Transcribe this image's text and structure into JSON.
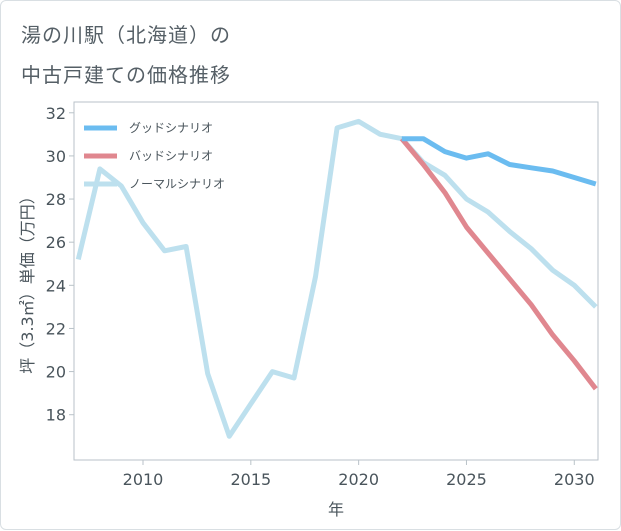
{
  "title_line1": "湯の川駅（北海道）の",
  "title_line2": "中古戸建ての価格推移",
  "chart_data": {
    "type": "line",
    "xlabel": "年",
    "ylabel": "坪（3.3㎡）単価（万円）",
    "xlim": [
      2006.8,
      2031.1
    ],
    "ylim": [
      15.9,
      32.5
    ],
    "xticks": [
      2010,
      2015,
      2020,
      2025,
      2030
    ],
    "yticks": [
      18,
      20,
      22,
      24,
      26,
      28,
      30,
      32
    ],
    "grid": false,
    "legend_position": "top-left",
    "series": [
      {
        "name": "グッドシナリオ",
        "color": "#6bbcf0",
        "x": [
          2022,
          2023,
          2024,
          2025,
          2026,
          2027,
          2028,
          2029,
          2030,
          2031
        ],
        "y": [
          30.8,
          30.8,
          30.2,
          29.9,
          30.1,
          29.6,
          29.45,
          29.3,
          29.0,
          28.7
        ]
      },
      {
        "name": "バッドシナリオ",
        "color": "#e0878f",
        "x": [
          2022,
          2023,
          2024,
          2025,
          2026,
          2027,
          2028,
          2029,
          2030,
          2031
        ],
        "y": [
          30.8,
          29.6,
          28.3,
          26.7,
          25.5,
          24.3,
          23.1,
          21.7,
          20.5,
          19.2
        ]
      },
      {
        "name": "ノーマルシナリオ",
        "color": "#bde0ee",
        "x": [
          2007,
          2008,
          2009,
          2010,
          2011,
          2012,
          2013,
          2014,
          2015,
          2016,
          2017,
          2018,
          2019,
          2020,
          2021,
          2022,
          2023,
          2024,
          2025,
          2026,
          2027,
          2028,
          2029,
          2030,
          2031
        ],
        "y": [
          25.2,
          29.4,
          28.6,
          26.9,
          25.6,
          25.8,
          19.9,
          17.0,
          18.5,
          20.0,
          19.7,
          24.4,
          31.3,
          31.6,
          31.0,
          30.8,
          29.7,
          29.1,
          28.0,
          27.4,
          26.5,
          25.7,
          24.7,
          24.0,
          23.0
        ]
      }
    ]
  }
}
